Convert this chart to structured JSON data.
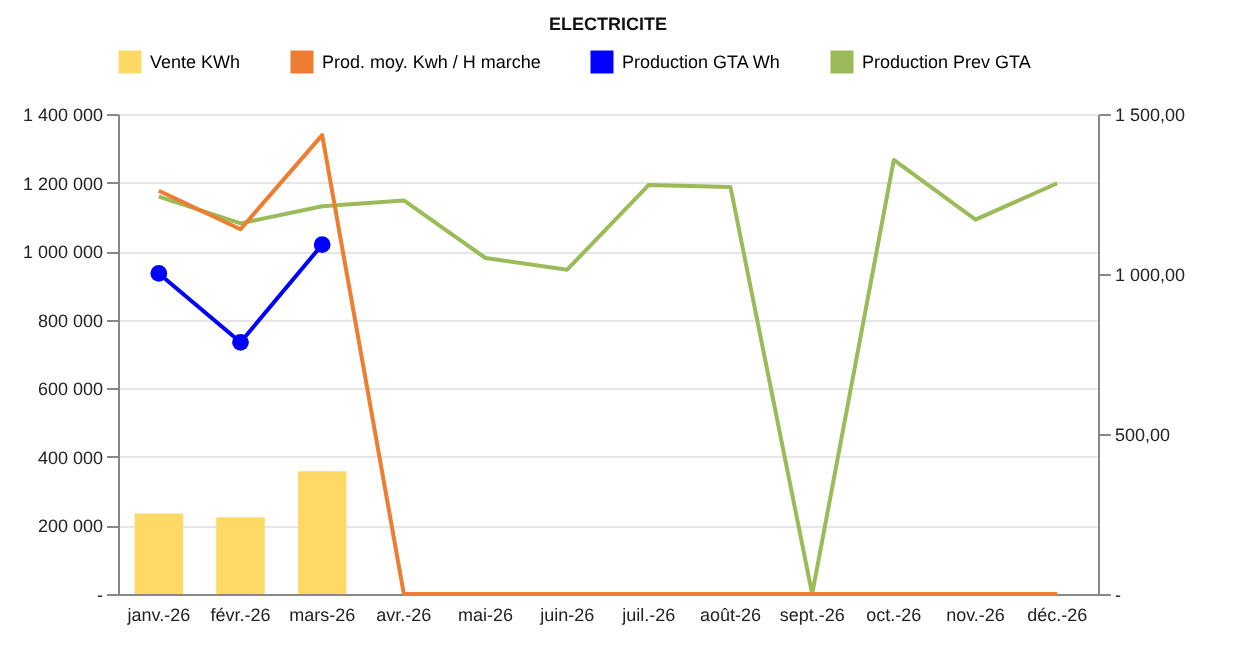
{
  "chart_data": {
    "type": "bar",
    "title": "ELECTRICITE",
    "categories": [
      "janv.-26",
      "févr.-26",
      "mars-26",
      "avr.-26",
      "mai-26",
      "juin-26",
      "juil.-26",
      "août-26",
      "sept.-26",
      "oct.-26",
      "nov.-26",
      "déc.-26"
    ],
    "series": [
      {
        "name": "Vente KWh",
        "color": "#ffd966",
        "values": [
          235000,
          224000,
          358000,
          null,
          null,
          null,
          null,
          null,
          null,
          null,
          null,
          null
        ]
      },
      {
        "name": "Prod. moy. Kwh / H marche",
        "type": "line",
        "axis": "y2",
        "color": "#ed7d31",
        "marker": "none",
        "values": [
          1260,
          1140,
          1434,
          0,
          0,
          0,
          0,
          0,
          0,
          0,
          0,
          0
        ]
      },
      {
        "name": "Production GTA Wh",
        "type": "line",
        "color": "#0000ff",
        "marker": "circle",
        "values": [
          935000,
          734000,
          1019000,
          null,
          null,
          null,
          null,
          null,
          null,
          null,
          null,
          null
        ]
      },
      {
        "name": "Production Prev GTA",
        "type": "line",
        "color": "#9bbb59",
        "marker": "none",
        "values": [
          1159000,
          1081000,
          1131000,
          1148000,
          980000,
          946000,
          1193000,
          1187000,
          0,
          1266000,
          1092000,
          1198000
        ]
      }
    ],
    "ylim": [
      0,
      1400000
    ],
    "yticks": [
      {
        "value": 0,
        "label": "-"
      },
      {
        "value": 200000,
        "label": "200 000"
      },
      {
        "value": 400000,
        "label": "400 000"
      },
      {
        "value": 600000,
        "label": "600 000"
      },
      {
        "value": 800000,
        "label": "800 000"
      },
      {
        "value": 1000000,
        "label": "1 000 000"
      },
      {
        "value": 1200000,
        "label": "1 200 000"
      },
      {
        "value": 1400000,
        "label": "1 400 000"
      }
    ],
    "y2lim": [
      0,
      1500
    ],
    "y2ticks": [
      {
        "value": 0,
        "label": "-"
      },
      {
        "value": 500,
        "label": "500,00"
      },
      {
        "value": 1000,
        "label": "1 000,00"
      },
      {
        "value": 1500,
        "label": "1 500,00"
      }
    ],
    "grid": "y",
    "legend": "top",
    "line_style": "solid"
  }
}
